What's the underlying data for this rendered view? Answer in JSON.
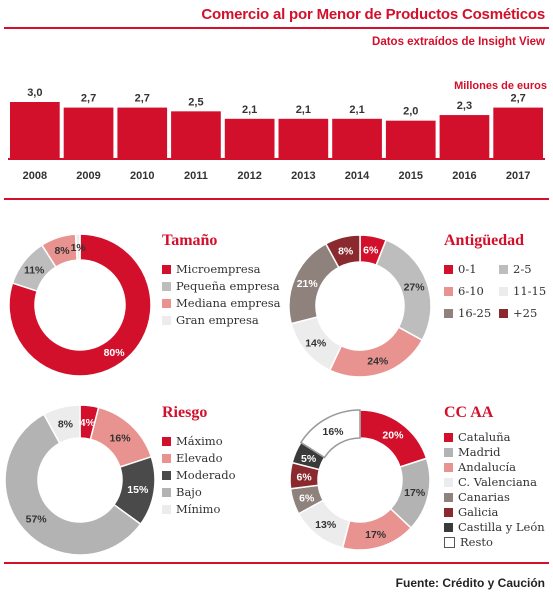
{
  "header": {
    "title": "Comercio al por Menor de Productos Cosméticos",
    "subtitle": "Datos extraídos de Insight View",
    "units": "Millones de euros"
  },
  "chart_data": [
    {
      "type": "bar",
      "categories": [
        "2008",
        "2009",
        "2010",
        "2011",
        "2012",
        "2013",
        "2014",
        "2015",
        "2016",
        "2017"
      ],
      "values": [
        3.0,
        2.7,
        2.7,
        2.5,
        2.1,
        2.1,
        2.1,
        2.0,
        2.3,
        2.7
      ],
      "value_labels": [
        "3,0",
        "2,7",
        "2,7",
        "2,5",
        "2,1",
        "2,1",
        "2,1",
        "2,0",
        "2,3",
        "2,7"
      ],
      "ylabel": "Millones de euros",
      "color": "#d2102c"
    },
    {
      "type": "pie",
      "title": "Tamaño",
      "labels": [
        "Microempresa",
        "Pequeña empresa",
        "Mediana empresa",
        "Gran empresa"
      ],
      "values": [
        80,
        11,
        8,
        1
      ],
      "value_labels": [
        "80%",
        "11%",
        "8%",
        "1%"
      ],
      "colors": [
        "#d2102c",
        "#bdbdbd",
        "#e8938f",
        "#ececec"
      ]
    },
    {
      "type": "pie",
      "title": "Antigüedad",
      "labels": [
        "0-1",
        "2-5",
        "6-10",
        "11-15",
        "16-25",
        "+25"
      ],
      "values": [
        6,
        27,
        24,
        14,
        21,
        8
      ],
      "value_labels": [
        "6%",
        "27%",
        "24%",
        "14%",
        "21%",
        "8%"
      ],
      "colors": [
        "#d2102c",
        "#bdbdbd",
        "#e8938f",
        "#ececec",
        "#8f817c",
        "#8b2a2e"
      ]
    },
    {
      "type": "pie",
      "title": "Riesgo",
      "labels": [
        "Máximo",
        "Elevado",
        "Moderado",
        "Bajo",
        "Mínimo"
      ],
      "values": [
        4,
        16,
        15,
        57,
        8
      ],
      "value_labels": [
        "4%",
        "16%",
        "15%",
        "57%",
        "8%"
      ],
      "colors": [
        "#d2102c",
        "#e8938f",
        "#4a4a4a",
        "#b3b3b3",
        "#ececec"
      ]
    },
    {
      "type": "pie",
      "title": "CC AA",
      "labels": [
        "Cataluña",
        "Madrid",
        "Andalucía",
        "C. Valenciana",
        "Canarias",
        "Galicia",
        "Castilla y León",
        "Resto"
      ],
      "values": [
        20,
        17,
        17,
        13,
        6,
        6,
        5,
        16
      ],
      "value_labels": [
        "20%",
        "17%",
        "17%",
        "13%",
        "6%",
        "6%",
        "5%",
        "16%"
      ],
      "colors": [
        "#d2102c",
        "#b3b3b3",
        "#e8938f",
        "#ececec",
        "#8f817c",
        "#8b2a2e",
        "#3a3a3a",
        "#ffffff"
      ]
    }
  ],
  "footer": {
    "source": "Fuente: Crédito y Caución"
  }
}
